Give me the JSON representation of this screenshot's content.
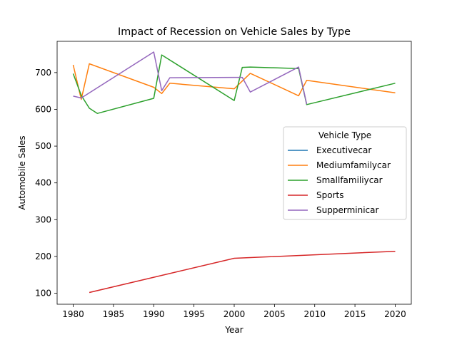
{
  "chart_data": {
    "type": "line",
    "title": "Impact of Recession on Vehicle Sales by Type",
    "xlabel": "Year",
    "ylabel": "Automobile Sales",
    "xlim": [
      1978,
      2022
    ],
    "ylim": [
      70,
      785
    ],
    "xticks": [
      1980,
      1985,
      1990,
      1995,
      2000,
      2005,
      2010,
      2015,
      2020
    ],
    "yticks": [
      100,
      200,
      300,
      400,
      500,
      600,
      700
    ],
    "grid": false,
    "legend": {
      "title": "Vehicle Type",
      "placement": "center-right"
    },
    "series": [
      {
        "name": "Executivecar",
        "color": "#1f77b4",
        "points": []
      },
      {
        "name": "Mediumfamilycar",
        "color": "#ff7f0e",
        "points": [
          [
            1980,
            721
          ],
          [
            1981,
            627
          ],
          [
            1982,
            724
          ],
          [
            1990,
            660
          ],
          [
            1991,
            643
          ],
          [
            1992,
            671
          ],
          [
            2000,
            656
          ],
          [
            2002,
            698
          ],
          [
            2008,
            637
          ],
          [
            2009,
            679
          ],
          [
            2020,
            645
          ]
        ]
      },
      {
        "name": "Smallfamiliycar",
        "color": "#2ca02c",
        "points": [
          [
            1980,
            697
          ],
          [
            1981,
            638
          ],
          [
            1982,
            603
          ],
          [
            1983,
            589
          ],
          [
            1990,
            630
          ],
          [
            1991,
            748
          ],
          [
            2000,
            624
          ],
          [
            2001,
            714
          ],
          [
            2002,
            715
          ],
          [
            2008,
            711
          ],
          [
            2009,
            613
          ],
          [
            2020,
            671
          ]
        ]
      },
      {
        "name": "Sports",
        "color": "#d62728",
        "points": [
          [
            1982,
            102
          ],
          [
            2000,
            195
          ],
          [
            2020,
            214
          ]
        ]
      },
      {
        "name": "Supperminicar",
        "color": "#9467bd",
        "points": [
          [
            1980,
            636
          ],
          [
            1981,
            631
          ],
          [
            1990,
            756
          ],
          [
            1991,
            651
          ],
          [
            1992,
            686
          ],
          [
            2000,
            687
          ],
          [
            2001,
            687
          ],
          [
            2002,
            647
          ],
          [
            2008,
            715
          ],
          [
            2009,
            614
          ]
        ]
      }
    ]
  }
}
